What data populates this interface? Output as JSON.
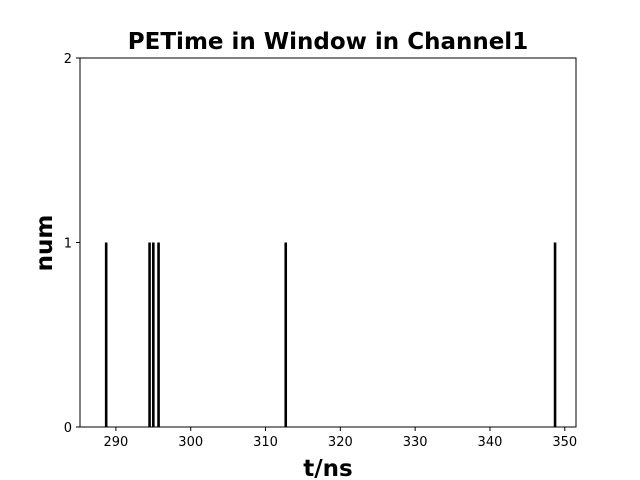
{
  "chart_data": {
    "type": "bar",
    "title": "PETime in Window in Channel1",
    "xlabel": "t/ns",
    "ylabel": "num",
    "xlim": [
      285.2,
      351.5
    ],
    "ylim": [
      0,
      2
    ],
    "x_ticks": [
      290,
      300,
      310,
      320,
      330,
      340,
      350
    ],
    "y_ticks": [
      0,
      1,
      2
    ],
    "grid": false,
    "bar_color": "#000000",
    "bars": [
      {
        "x": 288.7,
        "value": 1
      },
      {
        "x": 294.5,
        "value": 1
      },
      {
        "x": 295.0,
        "value": 1
      },
      {
        "x": 295.7,
        "value": 1
      },
      {
        "x": 312.7,
        "value": 1
      },
      {
        "x": 348.7,
        "value": 1
      }
    ]
  }
}
